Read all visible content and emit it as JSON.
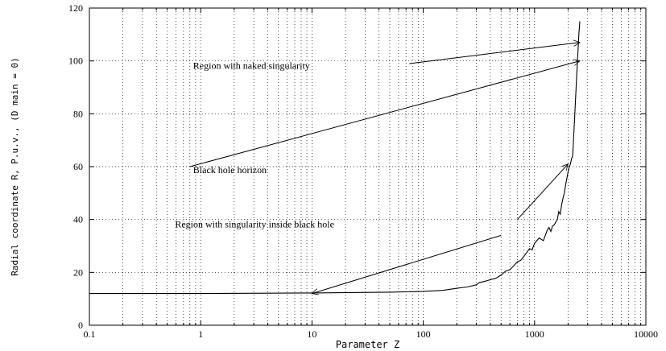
{
  "chart_data": {
    "type": "line",
    "xlabel": "Parameter Z",
    "ylabel": "Radial coordinate R, P.u.v., (D main = 0)",
    "xscale": "log",
    "xlim": [
      0.1,
      10000
    ],
    "ylim": [
      0,
      120
    ],
    "grid": true,
    "xticks": [
      {
        "value": 0.1,
        "label": "0.1"
      },
      {
        "value": 1,
        "label": "1"
      },
      {
        "value": 10,
        "label": "10"
      },
      {
        "value": 100,
        "label": "100"
      },
      {
        "value": 1000,
        "label": "1000"
      },
      {
        "value": 10000,
        "label": "10000"
      }
    ],
    "yticks": [
      {
        "value": 0,
        "label": "0"
      },
      {
        "value": 20,
        "label": "20"
      },
      {
        "value": 40,
        "label": "40"
      },
      {
        "value": 60,
        "label": "60"
      },
      {
        "value": 80,
        "label": "80"
      },
      {
        "value": 100,
        "label": "100"
      },
      {
        "value": 120,
        "label": "120"
      }
    ],
    "series": [
      {
        "x": [
          0.1,
          1,
          10,
          50,
          100,
          150,
          200,
          250,
          300,
          320,
          350,
          400,
          450,
          500,
          550,
          600,
          650,
          700,
          750,
          800,
          850,
          900,
          950,
          1000,
          1100,
          1200,
          1300,
          1350,
          1400,
          1450,
          1500,
          1600,
          1650,
          1700,
          1750,
          1800,
          1850,
          1900,
          2000,
          2050,
          2100,
          2150,
          2200,
          2250,
          2300,
          2350,
          2400,
          2450,
          2500,
          2550
        ],
        "y": [
          12,
          12,
          12.2,
          12.5,
          12.8,
          13.2,
          14,
          14.5,
          15.3,
          16.2,
          16.5,
          17.2,
          17.8,
          19,
          20.5,
          21,
          22.5,
          24,
          24.5,
          26,
          27.5,
          29,
          28.5,
          31,
          33,
          32,
          36,
          37,
          35.5,
          37.5,
          38,
          40,
          43,
          42,
          45.5,
          48,
          50,
          53,
          58,
          60,
          61,
          63,
          64,
          72,
          80,
          88,
          96,
          103,
          110,
          115
        ]
      }
    ],
    "annotations": [
      {
        "text": "Region with naked singularity",
        "x": 0.8,
        "y": 97
      },
      {
        "text": "Black hole horizon",
        "x": 0.8,
        "y": 57.5
      },
      {
        "text": "Region with singularity inside black hole",
        "x": 0.55,
        "y": 37
      }
    ],
    "arrows": [
      {
        "from": [
          75,
          99
        ],
        "to": [
          2550,
          107
        ]
      },
      {
        "from": [
          0.8,
          60
        ],
        "to": [
          2550,
          100
        ]
      },
      {
        "from": [
          500,
          34
        ],
        "to": [
          10,
          12
        ]
      },
      {
        "from": [
          700,
          40
        ],
        "to": [
          2000,
          61
        ]
      }
    ]
  }
}
